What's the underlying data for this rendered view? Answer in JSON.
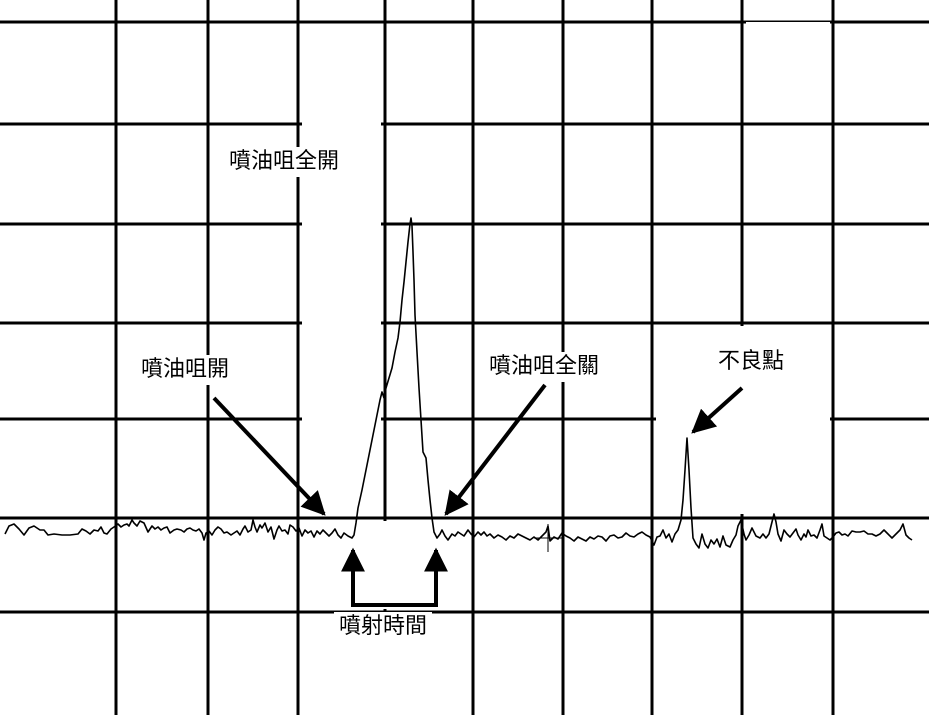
{
  "labels": {
    "injector_full_open": "噴油咀全開",
    "injector_open": "噴油咀開",
    "injector_full_close": "噴油咀全關",
    "bad_point": "不良點",
    "injection_duration": "噴射時間"
  },
  "colors": {
    "trace": "#000000",
    "grid": "#000000",
    "background": "#ffffff"
  }
}
